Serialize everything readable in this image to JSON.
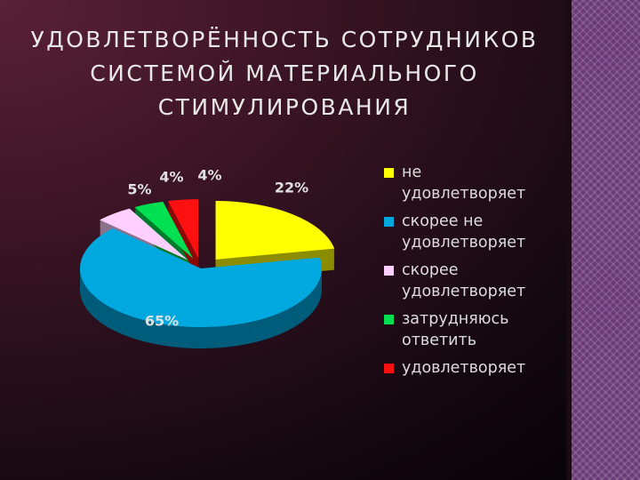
{
  "chart_data": {
    "type": "pie",
    "title": "УДОВЛЕТВОРЁННОСТЬ СОТРУДНИКОВ СИСТЕМОЙ МАТЕРИАЛЬНОГО СТИМУЛИРОВАНИЯ",
    "categories": [
      "не удовлетворяет",
      "скорее не удовлетворяет",
      "скорее удовлетворяет",
      "затрудняюсь ответить",
      "удовлетворяет"
    ],
    "values": [
      22,
      65,
      5,
      4,
      4
    ],
    "value_labels": [
      "22%",
      "65%",
      "5%",
      "4%",
      "4%"
    ],
    "colors": [
      "#ffff00",
      "#00a8e0",
      "#ffd0ff",
      "#00e050",
      "#ff1010"
    ],
    "legend": "right"
  }
}
